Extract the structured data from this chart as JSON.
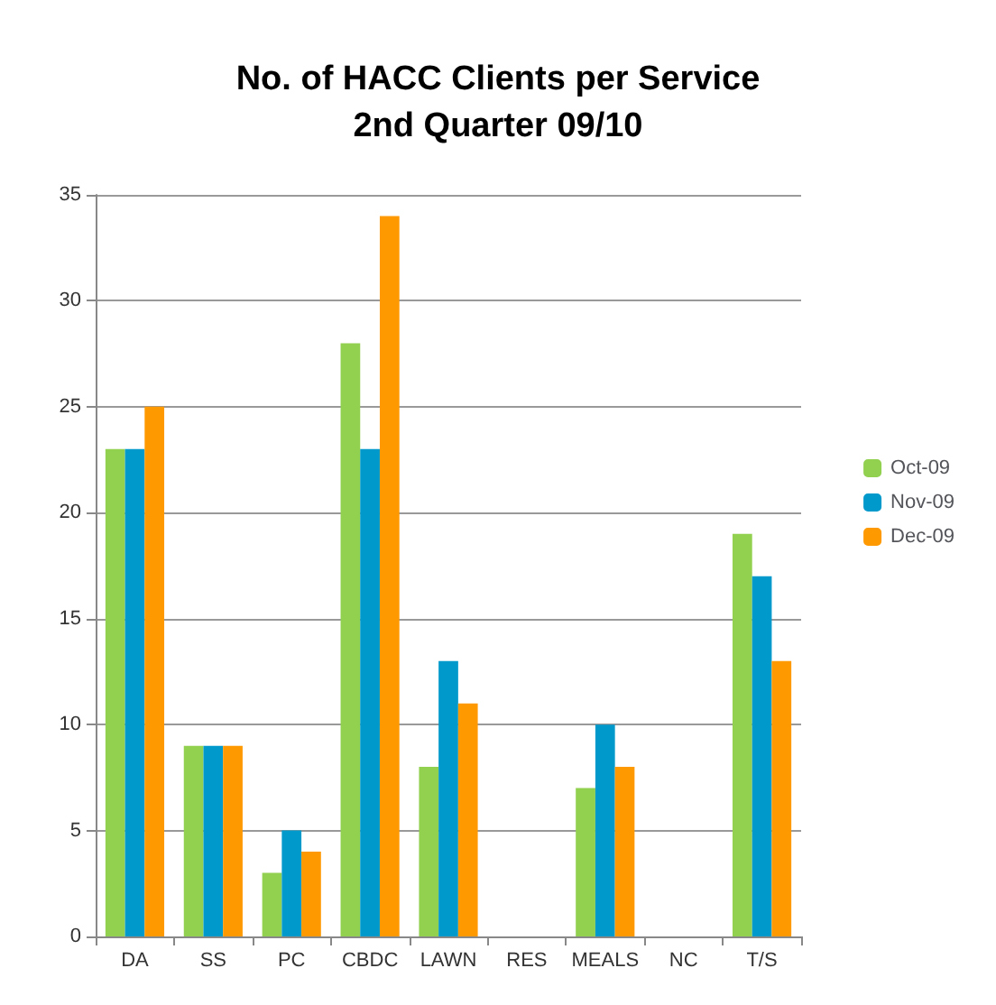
{
  "chart_data": {
    "type": "bar",
    "title": "No. of HACC Clients per Service\n2nd Quarter 09/10",
    "categories": [
      "DA",
      "SS",
      "PC",
      "CBDC",
      "LAWN",
      "RES",
      "MEALS",
      "NC",
      "T/S"
    ],
    "series": [
      {
        "name": "Oct-09",
        "color": "#92d050",
        "values": [
          23,
          9,
          3,
          28,
          8,
          0,
          7,
          0,
          19
        ]
      },
      {
        "name": "Nov-09",
        "color": "#0099cc",
        "values": [
          23,
          9,
          5,
          23,
          13,
          0,
          10,
          0,
          17
        ]
      },
      {
        "name": "Dec-09",
        "color": "#ff9900",
        "values": [
          25,
          9,
          4,
          34,
          11,
          0,
          8,
          0,
          13
        ]
      }
    ],
    "ylim": [
      0,
      35
    ],
    "yticks": [
      0,
      5,
      10,
      15,
      20,
      25,
      30,
      35
    ],
    "grid": "y",
    "legend": "right"
  }
}
